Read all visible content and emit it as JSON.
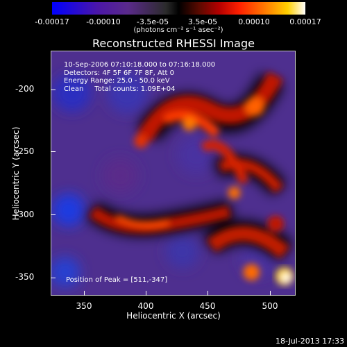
{
  "colorbar": {
    "ticks": [
      "-0.00017",
      "-0.00010",
      "-3.5e-05",
      "3.5e-05",
      "0.00010",
      "0.00017"
    ],
    "units": "(photons cm⁻² s⁻¹ asec⁻²)"
  },
  "title": "Reconstructed RHESSI Image",
  "info": {
    "time_range": "10-Sep-2006 07:10:18.000 to 07:16:18.000",
    "detectors": "Detectors: 4F 5F 6F 7F 8F, Att 0",
    "energy": "Energy Range: 25.0 - 50.0 keV",
    "clean": "Clean     Total counts: 1.09E+04"
  },
  "peak": "Position of Peak = [511,-347]",
  "axes": {
    "y_label": "Heliocentric Y (arcsec)",
    "x_label": "Heliocentric X (arcsec)",
    "y_ticks": [
      "-200",
      "-250",
      "-300",
      "-350"
    ],
    "x_ticks": [
      "350",
      "400",
      "450",
      "500"
    ]
  },
  "timestamp": "18-Jul-2013 17:33"
}
